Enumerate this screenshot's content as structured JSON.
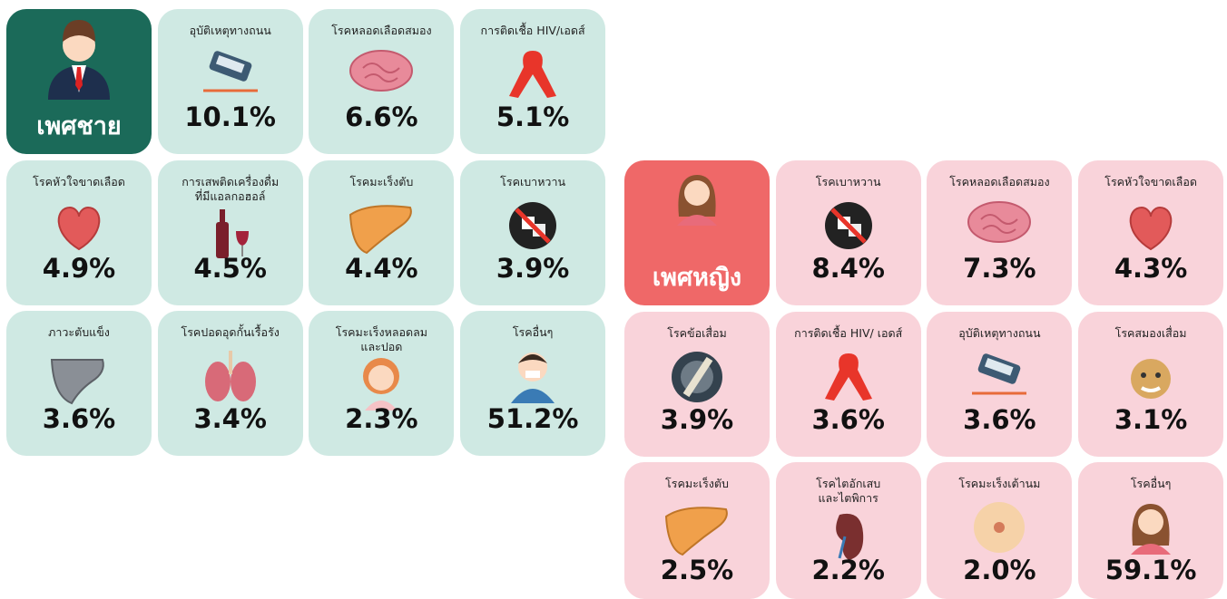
{
  "male": {
    "title": "เพศชาย",
    "items": [
      {
        "label": "อุบัติเหตุทางถนน",
        "value": "10.1%"
      },
      {
        "label": "โรคหลอดเลือดสมอง",
        "value": "6.6%"
      },
      {
        "label": "การติดเชื้อ HIV/เอดส์",
        "value": "5.1%"
      },
      {
        "label": "โรคหัวใจขาดเลือด",
        "value": "4.9%"
      },
      {
        "label": "การเสพติดเครื่องดื่ม\nที่มีแอลกอฮอล์",
        "value": "4.5%"
      },
      {
        "label": "โรคมะเร็งตับ",
        "value": "4.4%"
      },
      {
        "label": "โรคเบาหวาน",
        "value": "3.9%"
      },
      {
        "label": "ภาวะตับแข็ง",
        "value": "3.6%"
      },
      {
        "label": "โรคปอดอุดกั้นเรื้อรัง",
        "value": "3.4%"
      },
      {
        "label": "โรคมะเร็งหลอดลม\nและปอด",
        "value": "2.3%"
      },
      {
        "label": "โรคอื่นๆ",
        "value": "51.2%"
      }
    ]
  },
  "female": {
    "title": "เพศหญิง",
    "items": [
      {
        "label": "โรคเบาหวาน",
        "value": "8.4%"
      },
      {
        "label": "โรคหลอดเลือดสมอง",
        "value": "7.3%"
      },
      {
        "label": "โรคหัวใจขาดเลือด",
        "value": "4.3%"
      },
      {
        "label": "โรคข้อเสื่อม",
        "value": "3.9%"
      },
      {
        "label": "การติดเชื้อ HIV/ เอดส์",
        "value": "3.6%"
      },
      {
        "label": "อุบัติเหตุทางถนน",
        "value": "3.6%"
      },
      {
        "label": "โรคสมองเสื่อม",
        "value": "3.1%"
      },
      {
        "label": "โรคมะเร็งตับ",
        "value": "2.5%"
      },
      {
        "label": "โรคไตอักเสบ\nและไตพิการ",
        "value": "2.2%"
      },
      {
        "label": "โรคมะเร็งเต้านม",
        "value": "2.0%"
      },
      {
        "label": "โรคอื่นๆ",
        "value": "59.1%"
      }
    ]
  }
}
